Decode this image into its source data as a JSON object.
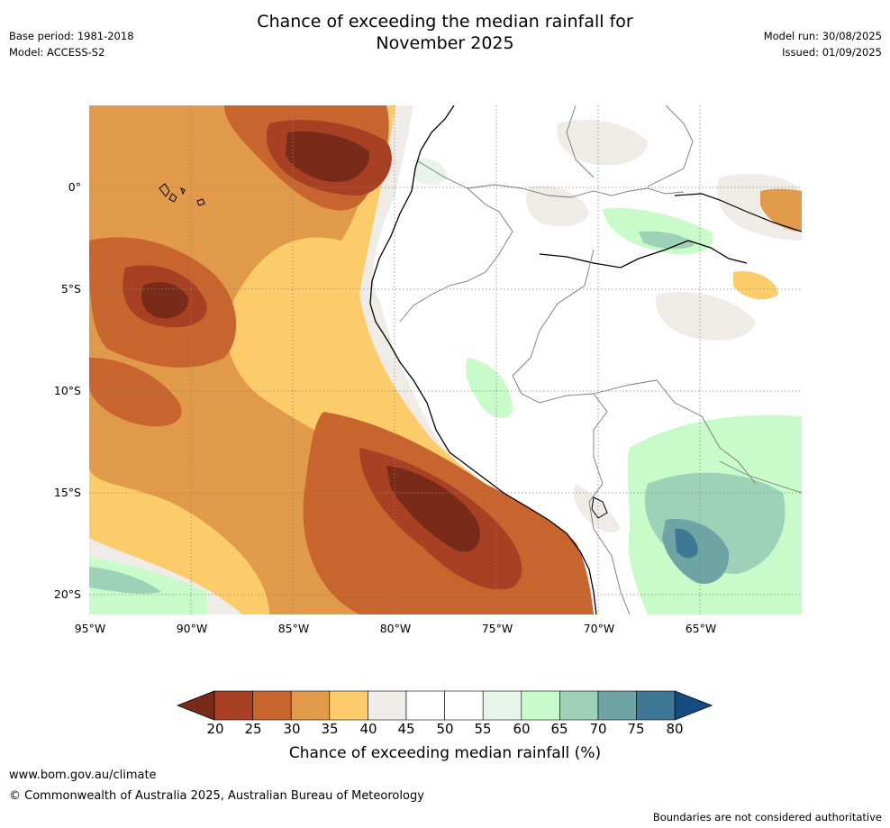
{
  "header": {
    "title_line1": "Chance of exceeding the median rainfall for",
    "title_line2": "November 2025",
    "base_period": "Base period: 1981-2018",
    "model": "Model: ACCESS-S2",
    "model_run": "Model run: 30/08/2025",
    "issued": "Issued: 01/09/2025"
  },
  "map": {
    "lat_labels": [
      "0°",
      "5°S",
      "10°S",
      "15°S",
      "20°S"
    ],
    "lon_labels": [
      "95°W",
      "90°W",
      "85°W",
      "80°W",
      "75°W",
      "70°W",
      "65°W"
    ],
    "extent": {
      "lon_min": -95,
      "lon_max": -60,
      "lat_min": -21,
      "lat_max": 4
    }
  },
  "colorbar": {
    "ticks": [
      "20",
      "25",
      "30",
      "35",
      "40",
      "45",
      "50",
      "55",
      "60",
      "65",
      "70",
      "75",
      "80"
    ],
    "colors": [
      "#7a2a18",
      "#a84024",
      "#c8652e",
      "#e09a4a",
      "#fccc6a",
      "#efebe7",
      "#ffffff",
      "#ffffff",
      "#e8f4ea",
      "#c9fac9",
      "#9ed2b8",
      "#6ea4a4",
      "#3e7894",
      "#174b80"
    ],
    "label": "Chance of exceeding median rainfall (%)"
  },
  "footer": {
    "url": "www.bom.gov.au/climate",
    "copyright": "© Commonwealth of Australia 2025, Australian Bureau of Meteorology",
    "disclaimer": "Boundaries are not considered authoritative"
  }
}
